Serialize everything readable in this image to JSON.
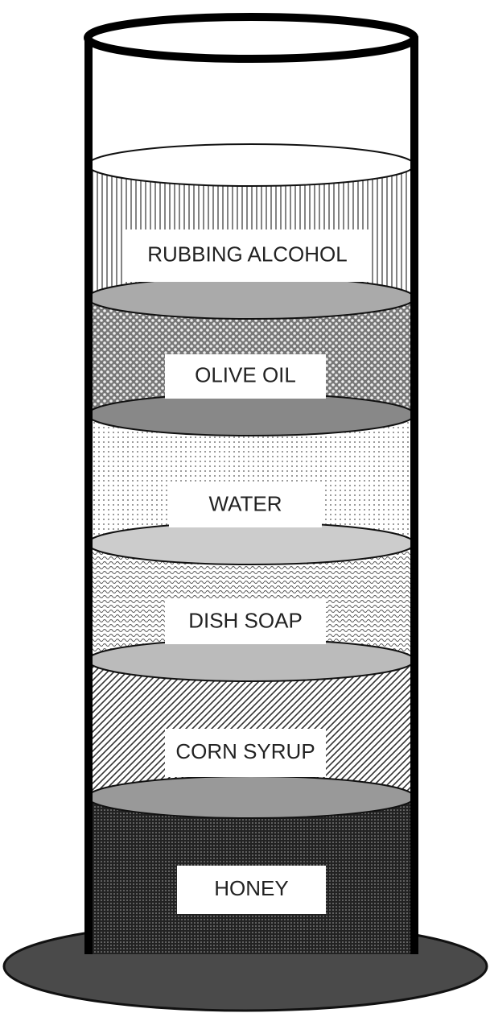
{
  "layers": [
    {
      "label": "RUBBING ALCOHOL"
    },
    {
      "label": "OLIVE OIL"
    },
    {
      "label": "WATER"
    },
    {
      "label": "DISH SOAP"
    },
    {
      "label": "CORN SYRUP"
    },
    {
      "label": "HONEY"
    }
  ]
}
